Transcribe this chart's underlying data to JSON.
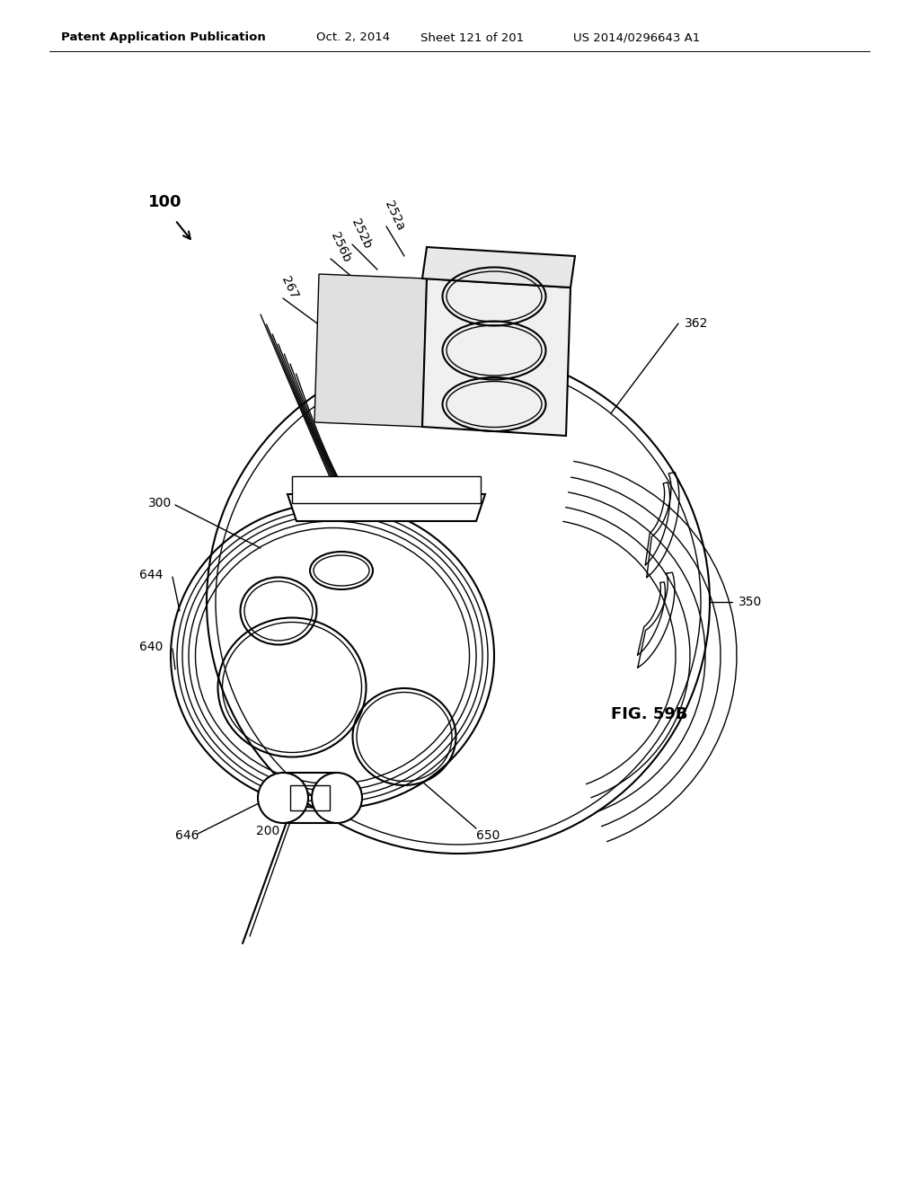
{
  "bg_color": "#ffffff",
  "line_color": "#000000",
  "header_text": "Patent Application Publication",
  "header_date": "Oct. 2, 2014",
  "header_sheet": "Sheet 121 of 201",
  "header_patent": "US 2014/0296643 A1",
  "fig_label": "FIG. 59B",
  "label_100": "100",
  "label_200": "200",
  "label_252a": "252a",
  "label_252b": "252b",
  "label_256b": "256b",
  "label_267": "267",
  "label_300": "300",
  "label_350": "350",
  "label_362": "362",
  "label_640": "640",
  "label_644": "644",
  "label_646": "646",
  "label_650": "650"
}
